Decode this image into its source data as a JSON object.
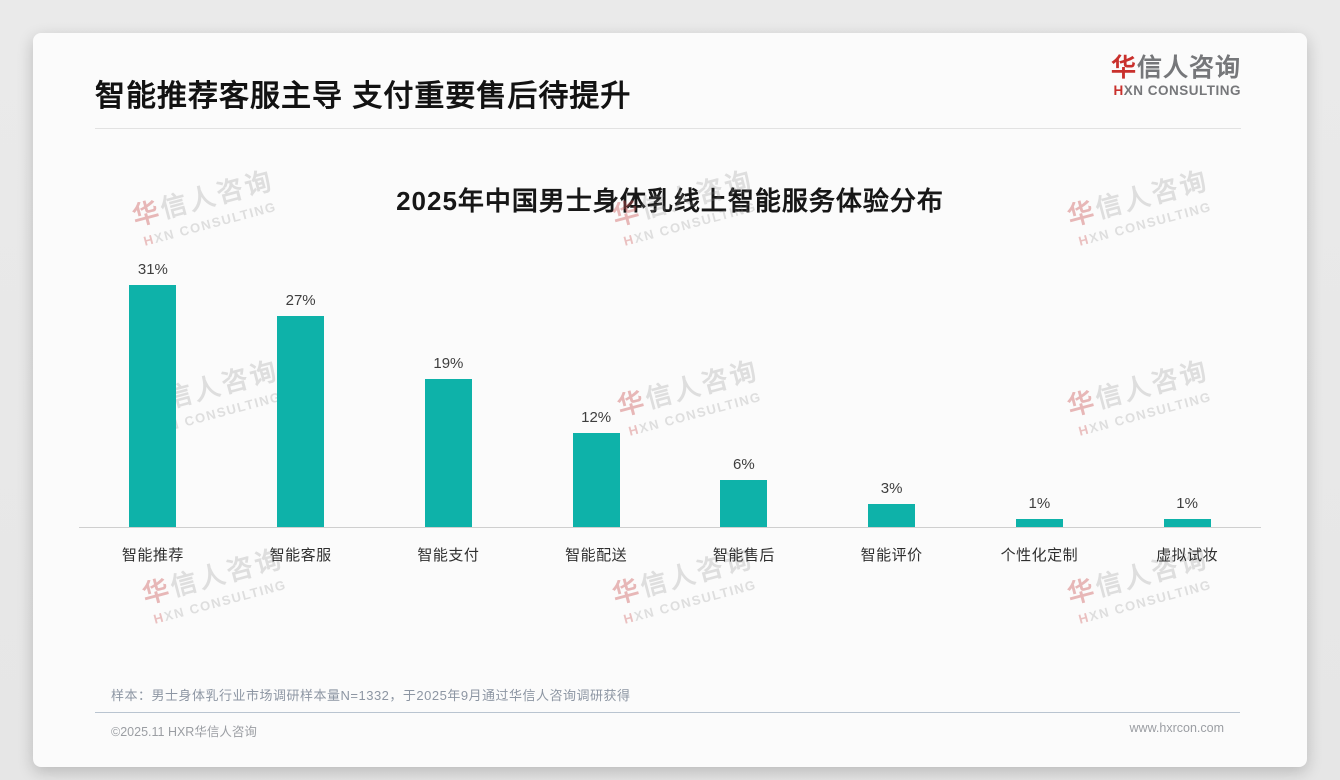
{
  "header": {
    "title": "智能推荐客服主导 支付重要售后待提升"
  },
  "logo": {
    "cn_first": "华",
    "cn_rest": "信人咨询",
    "en_first": "H",
    "en_rest": "XN CONSULTING"
  },
  "watermark": {
    "cn_first": "华",
    "cn_rest": "信人咨询",
    "en_first": "H",
    "en_rest": "XN CONSULTING"
  },
  "note": "样本：男士身体乳行业市场调研样本量N=1332，于2025年9月通过华信人咨询调研获得",
  "footer": {
    "left": "©2025.11 HXR华信人咨询",
    "right": "www.hxrcon.com"
  },
  "chart_data": {
    "type": "bar",
    "title": "2025年中国男士身体乳线上智能服务体验分布",
    "categories": [
      "智能推荐",
      "智能客服",
      "智能支付",
      "智能配送",
      "智能售后",
      "智能评价",
      "个性化定制",
      "虚拟试妆"
    ],
    "values": [
      31,
      27,
      19,
      12,
      6,
      3,
      1,
      1
    ],
    "value_labels": [
      "31%",
      "27%",
      "19%",
      "12%",
      "6%",
      "3%",
      "1%",
      "1%"
    ],
    "unit": "%",
    "bar_color": "#0eb2a9",
    "ylim": [
      0,
      35
    ],
    "grid": false,
    "legend": false,
    "value_label_position": "above-bar"
  }
}
